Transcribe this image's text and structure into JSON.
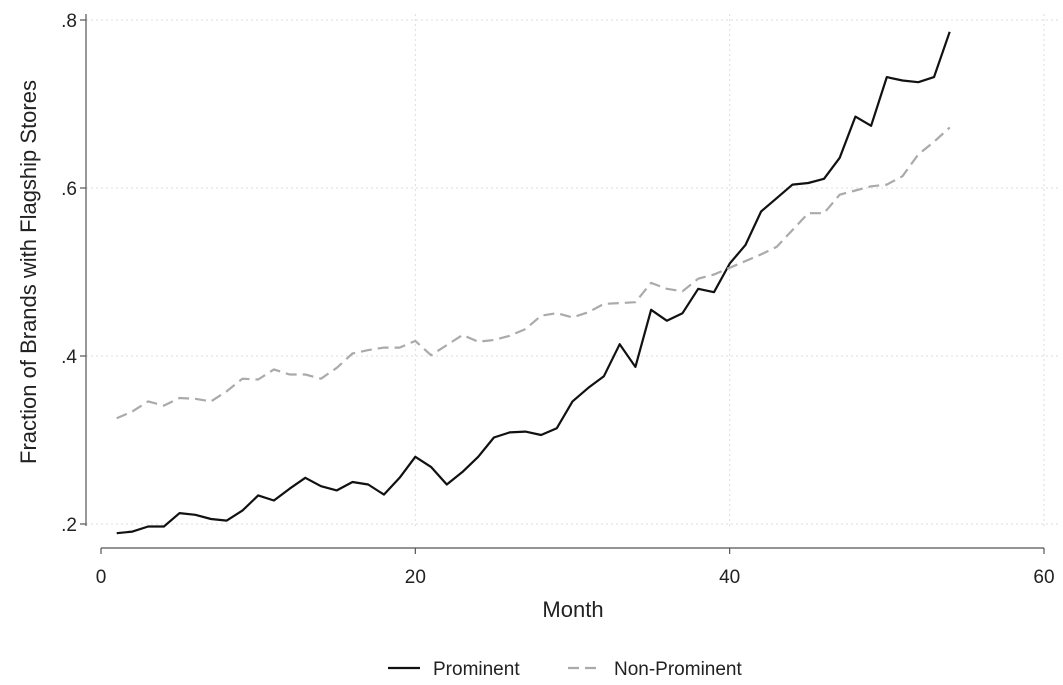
{
  "chart_data": {
    "type": "line",
    "title": "",
    "xlabel": "Month",
    "ylabel": "Fraction of Brands with Flagship Stores",
    "xlim": [
      0,
      60
    ],
    "ylim": [
      0.2,
      0.8
    ],
    "xticks": [
      0,
      20,
      40,
      60
    ],
    "xtick_labels": [
      "0",
      "20",
      "40",
      "60"
    ],
    "yticks": [
      0.2,
      0.4,
      0.6,
      0.8
    ],
    "ytick_labels": [
      ".2",
      ".4",
      ".6",
      ".8"
    ],
    "grid": true,
    "legend_position": "bottom",
    "x": [
      1,
      2,
      3,
      4,
      5,
      6,
      7,
      8,
      9,
      10,
      11,
      12,
      13,
      14,
      15,
      16,
      17,
      18,
      19,
      20,
      21,
      22,
      23,
      24,
      25,
      26,
      27,
      28,
      29,
      30,
      31,
      32,
      33,
      34,
      35,
      36,
      37,
      38,
      39,
      40,
      41,
      42,
      43,
      44,
      45,
      46,
      47,
      48,
      49,
      50,
      51,
      52,
      53,
      54
    ],
    "series": [
      {
        "name": "Prominent",
        "color": "#111111",
        "style": "solid",
        "values": [
          0.189,
          0.191,
          0.197,
          0.197,
          0.213,
          0.211,
          0.206,
          0.204,
          0.216,
          0.234,
          0.228,
          0.242,
          0.255,
          0.245,
          0.24,
          0.25,
          0.247,
          0.235,
          0.255,
          0.28,
          0.268,
          0.247,
          0.262,
          0.28,
          0.303,
          0.309,
          0.31,
          0.306,
          0.314,
          0.346,
          0.362,
          0.376,
          0.414,
          0.387,
          0.455,
          0.442,
          0.451,
          0.48,
          0.476,
          0.51,
          0.532,
          0.572,
          0.588,
          0.604,
          0.606,
          0.611,
          0.636,
          0.685,
          0.674,
          0.732,
          0.728,
          0.726,
          0.732,
          0.786
        ]
      },
      {
        "name": "Non-Prominent",
        "color": "#aaaaaa",
        "style": "dashed",
        "values": [
          0.326,
          0.334,
          0.346,
          0.341,
          0.35,
          0.349,
          0.346,
          0.358,
          0.373,
          0.372,
          0.384,
          0.378,
          0.378,
          0.373,
          0.386,
          0.403,
          0.407,
          0.41,
          0.41,
          0.418,
          0.401,
          0.413,
          0.425,
          0.417,
          0.419,
          0.424,
          0.432,
          0.448,
          0.451,
          0.446,
          0.452,
          0.462,
          0.463,
          0.464,
          0.487,
          0.48,
          0.477,
          0.492,
          0.497,
          0.505,
          0.513,
          0.521,
          0.53,
          0.55,
          0.57,
          0.57,
          0.592,
          0.597,
          0.602,
          0.604,
          0.614,
          0.64,
          0.655,
          0.672
        ]
      }
    ]
  }
}
